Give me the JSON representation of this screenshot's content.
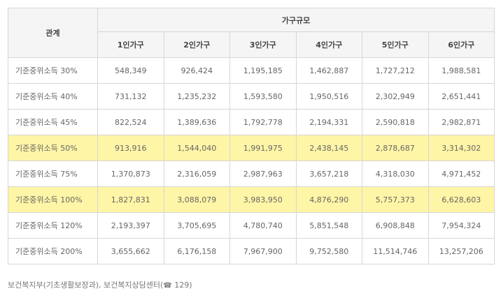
{
  "table": {
    "corner_header": "관계",
    "group_header": "가구규모",
    "columns": [
      "1인가구",
      "2인가구",
      "3인가구",
      "4인가구",
      "5인가구",
      "6인가구"
    ],
    "rows": [
      {
        "label": "기준중위소득 30%",
        "highlight": false,
        "values": [
          "548,349",
          "926,424",
          "1,195,185",
          "1,462,887",
          "1,727,212",
          "1,988,581"
        ]
      },
      {
        "label": "기준중위소득 40%",
        "highlight": false,
        "values": [
          "731,132",
          "1,235,232",
          "1,593,580",
          "1,950,516",
          "2,302,949",
          "2,651,441"
        ]
      },
      {
        "label": "기준중위소득 45%",
        "highlight": false,
        "values": [
          "822,524",
          "1,389,636",
          "1,792,778",
          "2,194,331",
          "2,590,818",
          "2,982,871"
        ]
      },
      {
        "label": "기준중위소득 50%",
        "highlight": true,
        "values": [
          "913,916",
          "1,544,040",
          "1,991,975",
          "2,438,145",
          "2,878,687",
          "3,314,302"
        ]
      },
      {
        "label": "기준중위소득 75%",
        "highlight": false,
        "values": [
          "1,370,873",
          "2,316,059",
          "2,987,963",
          "3,657,218",
          "4,318,030",
          "4,971,452"
        ]
      },
      {
        "label": "기준중위소득 100%",
        "highlight": true,
        "values": [
          "1,827,831",
          "3,088,079",
          "3,983,950",
          "4,876,290",
          "5,757,373",
          "6,628,603"
        ]
      },
      {
        "label": "기준중위소득 120%",
        "highlight": false,
        "values": [
          "2,193,397",
          "3,705,695",
          "4,780,740",
          "5,851,548",
          "6,908,848",
          "7,954,324"
        ]
      },
      {
        "label": "기준중위소득 200%",
        "highlight": false,
        "values": [
          "3,655,662",
          "6,176,158",
          "7,967,900",
          "9,752,580",
          "11,514,746",
          "13,257,206"
        ]
      }
    ],
    "highlight_color": "#fef5a6"
  },
  "source": {
    "text_before": "보건복지부(기초생활보장과), 보건복지상담센터(",
    "phone_icon": "phone-icon",
    "phone_number": " 129)"
  }
}
